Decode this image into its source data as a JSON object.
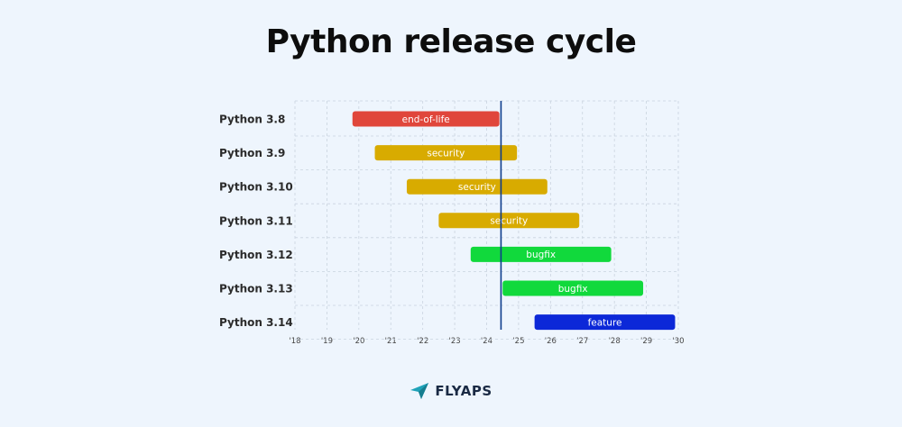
{
  "title": "Python release cycle",
  "logo": {
    "text": "FLYAPS",
    "icon": "paper-plane-icon"
  },
  "chart_data": {
    "type": "gantt",
    "xlim": [
      2018,
      2030
    ],
    "ticks": [
      "'18",
      "'19",
      "'20",
      "'21",
      "'22",
      "'23",
      "'24",
      "'25",
      "'26",
      "'27",
      "'28",
      "'29",
      "'30"
    ],
    "grid": true,
    "today_marker": 2024.45,
    "colors": {
      "end-of-life": "#e0463b",
      "security": "#d8ab00",
      "bugfix": "#11d93c",
      "feature": "#0c28d8",
      "today_line": "#0e3c8c"
    },
    "rows": [
      {
        "label": "Python 3.8",
        "start": 2019.8,
        "end": 2024.4,
        "phase": "end-of-life"
      },
      {
        "label": "Python 3.9",
        "start": 2020.5,
        "end": 2024.95,
        "phase": "security"
      },
      {
        "label": "Python 3.10",
        "start": 2021.5,
        "end": 2025.9,
        "phase": "security"
      },
      {
        "label": "Python 3.11",
        "start": 2022.5,
        "end": 2026.9,
        "phase": "security"
      },
      {
        "label": "Python 3.12",
        "start": 2023.5,
        "end": 2027.9,
        "phase": "bugfix"
      },
      {
        "label": "Python 3.13",
        "start": 2024.5,
        "end": 2028.9,
        "phase": "bugfix"
      },
      {
        "label": "Python 3.14",
        "start": 2025.5,
        "end": 2029.9,
        "phase": "feature"
      }
    ]
  }
}
